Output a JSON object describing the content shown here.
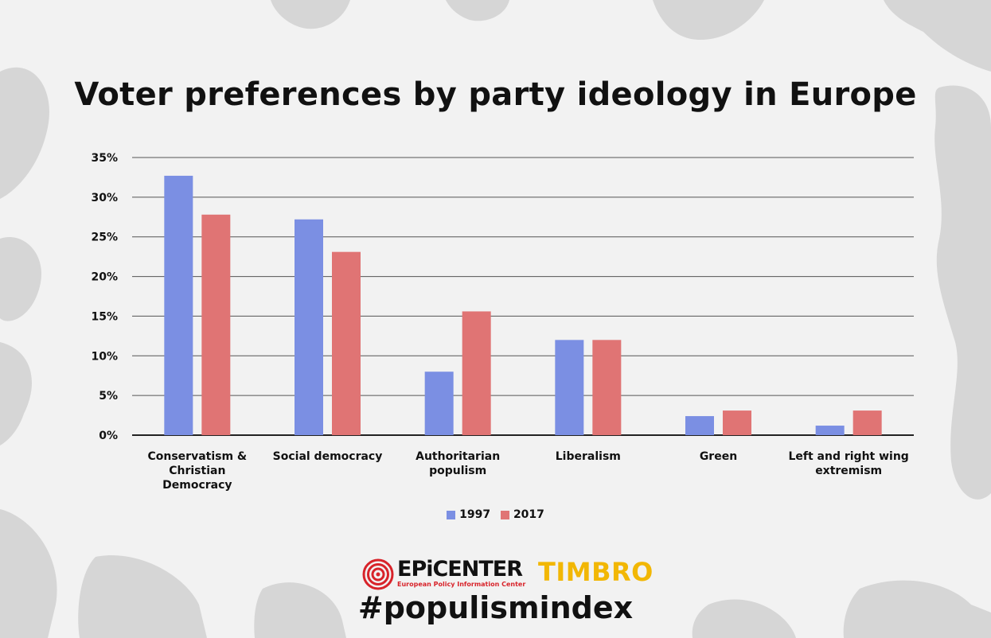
{
  "title": "Voter preferences by party ideology in Europe",
  "colors": {
    "series_1997": "#7b8fe3",
    "series_2017": "#e07474",
    "background": "#f2f2f2",
    "timbro": "#f2b705",
    "epicenter_red": "#d8232a"
  },
  "chart_data": {
    "type": "bar",
    "categories": [
      "Conservatism & Christian Democracy",
      "Social democracy",
      "Authoritarian populism",
      "Liberalism",
      "Green",
      "Left and right wing extremism"
    ],
    "category_lines": [
      [
        "Conservatism &",
        "Christian",
        "Democracy"
      ],
      [
        "Social democracy"
      ],
      [
        "Authoritarian",
        "populism"
      ],
      [
        "Liberalism"
      ],
      [
        "Green"
      ],
      [
        "Left and right wing",
        "extremism"
      ]
    ],
    "series": [
      {
        "name": "1997",
        "values": [
          32.7,
          27.2,
          8.0,
          12.0,
          2.4,
          1.2
        ]
      },
      {
        "name": "2017",
        "values": [
          27.8,
          23.1,
          15.6,
          12.0,
          3.1,
          3.1
        ]
      }
    ],
    "yticks": [
      "0%",
      "5%",
      "10%",
      "15%",
      "20%",
      "25%",
      "30%",
      "35%"
    ],
    "ylim": [
      0,
      35
    ],
    "grid": true,
    "legend_placement": "bottom-center"
  },
  "logos": {
    "epicenter_name": "EPiCENTER",
    "epicenter_subtitle": "European Policy Information Center",
    "timbro": "TIMBRO"
  },
  "hashtag": "#populismindex"
}
